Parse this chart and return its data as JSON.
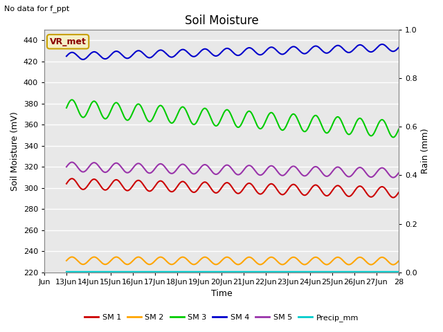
{
  "title": "Soil Moisture",
  "xlabel": "Time",
  "ylabel_left": "Soil Moisture (mV)",
  "ylabel_right": "Rain (mm)",
  "note": "No data for f_ppt",
  "vr_label": "VR_met",
  "ylim_left": [
    220,
    450
  ],
  "ylim_right": [
    0.0,
    1.0
  ],
  "yticks_left": [
    220,
    240,
    260,
    280,
    300,
    320,
    340,
    360,
    380,
    400,
    420,
    440
  ],
  "yticks_right": [
    0.0,
    0.2,
    0.4,
    0.6,
    0.8,
    1.0
  ],
  "xtick_labels": [
    "Jun",
    "13Jun",
    "14Jun",
    "15Jun",
    "16Jun",
    "17Jun",
    "18Jun",
    "19Jun",
    "20Jun",
    "21Jun",
    "22Jun",
    "23Jun",
    "24Jun",
    "25Jun",
    "26Jun",
    "27Jun",
    "28"
  ],
  "sm1_color": "#cc0000",
  "sm2_color": "#ffa500",
  "sm3_color": "#00cc00",
  "sm4_color": "#0000cc",
  "sm5_color": "#9933aa",
  "precip_color": "#00cccc",
  "plot_bg_color": "#e8e8e8",
  "fig_bg_color": "#ffffff",
  "grid_color": "#ffffff",
  "sm1_base": 304,
  "sm1_trend": -0.55,
  "sm1_amp": 5.0,
  "sm1_freq": 1.0,
  "sm2_base": 231,
  "sm2_trend": -0.02,
  "sm2_amp": 3.5,
  "sm2_freq": 1.0,
  "sm3_base": 376,
  "sm3_trend": -1.35,
  "sm3_amp": 8.0,
  "sm3_freq": 1.0,
  "sm4_base": 425,
  "sm4_trend": 0.55,
  "sm4_amp": 3.5,
  "sm4_freq": 1.0,
  "sm5_base": 320,
  "sm5_trend": -0.38,
  "sm5_amp": 4.5,
  "sm5_freq": 1.0
}
